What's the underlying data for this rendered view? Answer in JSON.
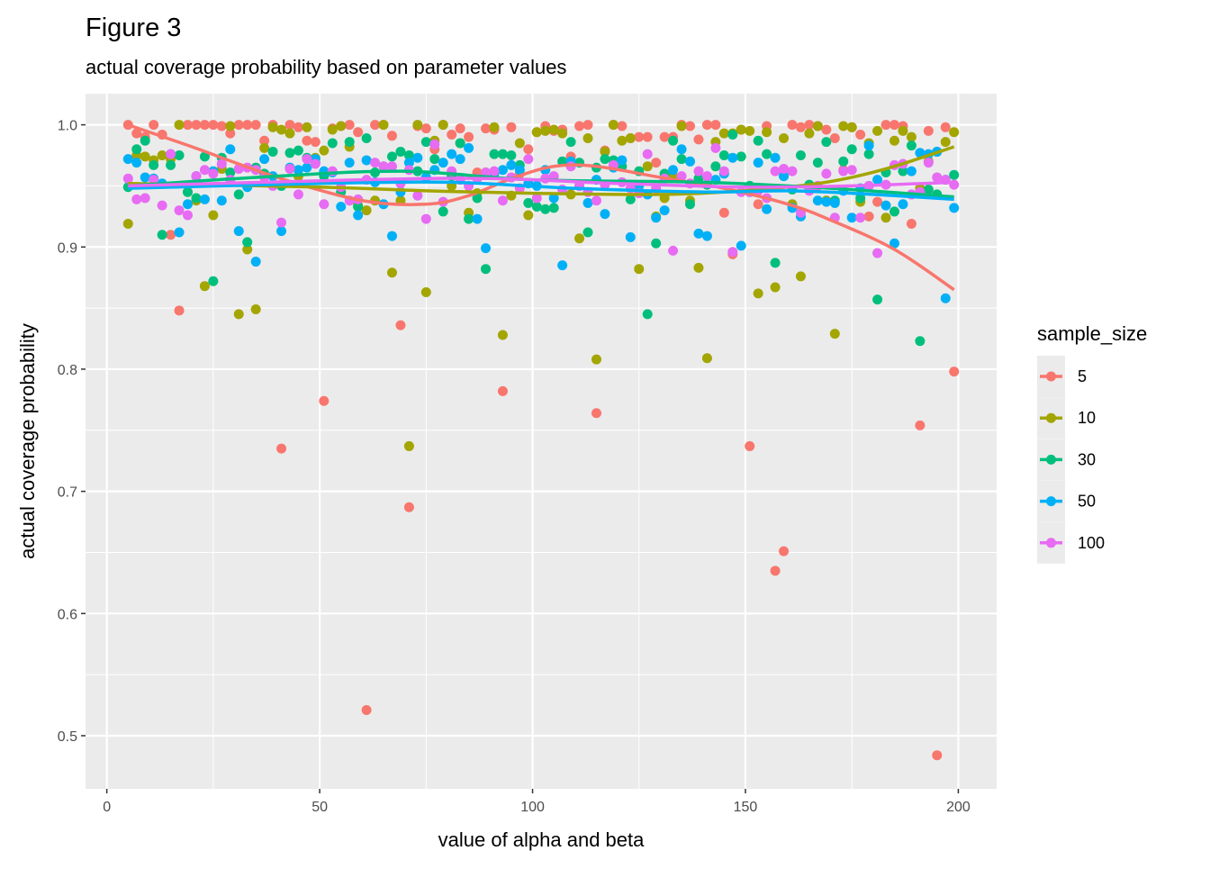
{
  "chart_data": {
    "type": "scatter",
    "title": "Figure 3",
    "subtitle": "actual coverage probability based on parameter values",
    "xlabel": "value of alpha and beta",
    "ylabel": "actual coverage probability",
    "xlim": [
      -5,
      209
    ],
    "ylim": [
      0.4565,
      1.0255
    ],
    "xticks": [
      0,
      50,
      100,
      150,
      200
    ],
    "xtick_labels": [
      "0",
      "50",
      "100",
      "150",
      "200"
    ],
    "yticks": [
      0.5,
      0.6,
      0.7,
      0.8,
      0.9,
      1.0
    ],
    "ytick_labels": [
      "0.5",
      "0.6",
      "0.7",
      "0.8",
      "0.9",
      "1.0"
    ],
    "grid": true,
    "legend": {
      "title": "sample_size",
      "position": "right"
    },
    "x": {
      "start": 5,
      "end": 199,
      "step": 2
    },
    "series": [
      {
        "name": "5",
        "color": "#F8766D",
        "values": [
          1.0,
          0.993,
          0.99,
          1.0,
          0.992,
          0.91,
          0.848,
          1.0,
          1.0,
          1.0,
          1.0,
          0.999,
          0.993,
          1.0,
          1.0,
          1.0,
          0.987,
          1.0,
          0.735,
          1.0,
          0.998,
          0.987,
          0.986,
          0.774,
          0.997,
          0.999,
          1.0,
          0.994,
          0.521,
          1.0,
          1.0,
          0.991,
          0.836,
          0.687,
          0.999,
          0.997,
          0.98,
          1.0,
          0.992,
          0.997,
          0.99,
          0.961,
          0.997,
          0.996,
          0.782,
          0.998,
          0.96,
          0.98,
          0.994,
          0.999,
          0.995,
          0.996,
          0.974,
          0.999,
          1.0,
          0.764,
          0.979,
          1.0,
          0.999,
          0.989,
          0.99,
          0.99,
          0.969,
          0.99,
          0.99,
          1.0,
          0.999,
          0.988,
          1.0,
          1.0,
          0.928,
          0.894,
          0.996,
          0.737,
          0.935,
          0.999,
          0.635,
          0.651,
          1.0,
          0.998,
          1.0,
          0.999,
          0.996,
          0.989,
          0.963,
          0.998,
          0.992,
          0.925,
          0.937,
          1.0,
          1.0,
          0.999,
          0.919,
          0.754,
          0.995,
          0.484,
          0.998,
          0.798
        ],
        "smooth": [
          [
            5,
            1.0
          ],
          [
            20,
            0.982
          ],
          [
            40,
            0.957
          ],
          [
            60,
            0.938
          ],
          [
            75,
            0.935
          ],
          [
            85,
            0.942
          ],
          [
            95,
            0.956
          ],
          [
            105,
            0.966
          ],
          [
            115,
            0.966
          ],
          [
            130,
            0.957
          ],
          [
            145,
            0.948
          ],
          [
            160,
            0.935
          ],
          [
            170,
            0.922
          ],
          [
            185,
            0.898
          ],
          [
            199,
            0.865
          ]
        ]
      },
      {
        "name": "10",
        "color": "#A3A500",
        "values": [
          0.919,
          0.975,
          0.974,
          0.971,
          0.975,
          0.972,
          1.0,
          0.945,
          0.938,
          0.868,
          0.926,
          0.964,
          0.999,
          0.845,
          0.898,
          0.849,
          0.981,
          0.998,
          0.996,
          0.993,
          0.958,
          0.998,
          0.973,
          0.979,
          0.996,
          0.999,
          0.982,
          0.934,
          0.93,
          0.938,
          1.0,
          0.879,
          0.938,
          0.737,
          1.0,
          0.863,
          0.987,
          1.0,
          0.95,
          0.985,
          0.928,
          0.944,
          0.961,
          0.998,
          0.828,
          0.942,
          0.985,
          0.926,
          0.994,
          0.995,
          0.996,
          0.993,
          0.943,
          0.907,
          0.989,
          0.808,
          0.978,
          1.0,
          0.987,
          0.989,
          0.882,
          0.966,
          0.925,
          0.94,
          0.958,
          0.999,
          0.938,
          0.883,
          0.809,
          0.986,
          0.993,
          0.993,
          0.996,
          0.995,
          0.862,
          0.994,
          0.867,
          0.989,
          0.935,
          0.876,
          0.993,
          0.999,
          0.938,
          0.829,
          0.999,
          0.998,
          0.937,
          0.985,
          0.995,
          0.924,
          0.987,
          0.995,
          0.99,
          0.948,
          0.97,
          0.978,
          0.986,
          0.994
        ],
        "smooth": [
          [
            5,
            0.952
          ],
          [
            50,
            0.949
          ],
          [
            75,
            0.946
          ],
          [
            100,
            0.944
          ],
          [
            130,
            0.943
          ],
          [
            150,
            0.946
          ],
          [
            165,
            0.951
          ],
          [
            175,
            0.957
          ],
          [
            185,
            0.966
          ],
          [
            199,
            0.982
          ]
        ]
      },
      {
        "name": "30",
        "color": "#00BF7D",
        "values": [
          0.949,
          0.98,
          0.987,
          0.967,
          0.91,
          0.967,
          0.975,
          0.945,
          0.94,
          0.974,
          0.872,
          0.973,
          0.961,
          0.943,
          0.904,
          0.965,
          0.96,
          0.978,
          0.95,
          0.977,
          0.979,
          0.973,
          0.969,
          0.958,
          0.985,
          0.945,
          0.986,
          0.933,
          0.989,
          0.961,
          0.966,
          0.974,
          0.978,
          0.975,
          0.962,
          0.986,
          0.972,
          0.929,
          0.958,
          0.985,
          0.923,
          0.94,
          0.882,
          0.976,
          0.976,
          0.975,
          0.967,
          0.936,
          0.933,
          0.931,
          0.932,
          0.97,
          0.986,
          0.969,
          0.912,
          0.965,
          0.972,
          0.971,
          0.966,
          0.939,
          0.962,
          0.845,
          0.903,
          0.96,
          0.987,
          0.972,
          0.935,
          0.956,
          0.951,
          0.966,
          0.975,
          0.992,
          0.974,
          0.95,
          0.987,
          0.976,
          0.887,
          0.958,
          0.947,
          0.975,
          0.951,
          0.969,
          0.986,
          0.938,
          0.97,
          0.98,
          0.94,
          0.976,
          0.857,
          0.961,
          0.929,
          0.962,
          0.983,
          0.823,
          0.947,
          0.943,
          0.955,
          0.959
        ],
        "smooth": [
          [
            5,
            0.95
          ],
          [
            40,
            0.958
          ],
          [
            70,
            0.962
          ],
          [
            100,
            0.955
          ],
          [
            140,
            0.953
          ],
          [
            170,
            0.948
          ],
          [
            199,
            0.941
          ]
        ]
      },
      {
        "name": "50",
        "color": "#00B0F6",
        "values": [
          0.972,
          0.969,
          0.957,
          0.956,
          0.952,
          0.976,
          0.912,
          0.935,
          0.958,
          0.939,
          0.962,
          0.938,
          0.98,
          0.913,
          0.949,
          0.888,
          0.972,
          0.958,
          0.913,
          0.965,
          0.963,
          0.965,
          0.972,
          0.962,
          0.961,
          0.933,
          0.969,
          0.926,
          0.971,
          0.953,
          0.935,
          0.909,
          0.945,
          0.969,
          0.973,
          0.957,
          0.963,
          0.969,
          0.976,
          0.972,
          0.981,
          0.923,
          0.899,
          0.96,
          0.963,
          0.967,
          0.963,
          0.952,
          0.95,
          0.963,
          0.94,
          0.885,
          0.97,
          0.95,
          0.936,
          0.955,
          0.927,
          0.965,
          0.971,
          0.908,
          0.95,
          0.943,
          0.924,
          0.93,
          0.963,
          0.98,
          0.97,
          0.911,
          0.909,
          0.955,
          0.96,
          0.973,
          0.901,
          0.945,
          0.969,
          0.931,
          0.973,
          0.958,
          0.932,
          0.925,
          0.948,
          0.938,
          0.937,
          0.936,
          0.946,
          0.924,
          0.948,
          0.983,
          0.955,
          0.934,
          0.903,
          0.935,
          0.962,
          0.977,
          0.976,
          0.978,
          0.858,
          0.932
        ],
        "smooth": [
          [
            5,
            0.948
          ],
          [
            50,
            0.952
          ],
          [
            80,
            0.953
          ],
          [
            110,
            0.948
          ],
          [
            140,
            0.945
          ],
          [
            160,
            0.946
          ],
          [
            180,
            0.943
          ],
          [
            199,
            0.939
          ]
        ]
      },
      {
        "name": "100",
        "color": "#E76BF3",
        "values": [
          0.956,
          0.939,
          0.94,
          0.955,
          0.934,
          0.976,
          0.93,
          0.926,
          0.958,
          0.963,
          0.96,
          0.968,
          0.955,
          0.964,
          0.965,
          0.963,
          0.957,
          0.95,
          0.92,
          0.964,
          0.943,
          0.972,
          0.968,
          0.935,
          0.962,
          0.949,
          0.938,
          0.939,
          0.955,
          0.969,
          0.966,
          0.966,
          0.952,
          0.963,
          0.942,
          0.923,
          0.984,
          0.937,
          0.962,
          0.955,
          0.95,
          0.956,
          0.961,
          0.962,
          0.938,
          0.957,
          0.948,
          0.972,
          0.94,
          0.956,
          0.958,
          0.947,
          0.966,
          0.95,
          0.945,
          0.938,
          0.951,
          0.967,
          0.953,
          0.948,
          0.944,
          0.976,
          0.948,
          0.956,
          0.897,
          0.958,
          0.952,
          0.962,
          0.958,
          0.981,
          0.962,
          0.896,
          0.945,
          0.945,
          0.946,
          0.94,
          0.962,
          0.964,
          0.962,
          0.928,
          0.946,
          0.95,
          0.96,
          0.924,
          0.962,
          0.963,
          0.924,
          0.95,
          0.895,
          0.951,
          0.967,
          0.968,
          0.943,
          0.945,
          0.969,
          0.957,
          0.955,
          0.951
        ],
        "smooth": [
          [
            5,
            0.95
          ],
          [
            60,
            0.955
          ],
          [
            90,
            0.956
          ],
          [
            120,
            0.952
          ],
          [
            150,
            0.949
          ],
          [
            175,
            0.95
          ],
          [
            199,
            0.953
          ]
        ]
      }
    ]
  }
}
